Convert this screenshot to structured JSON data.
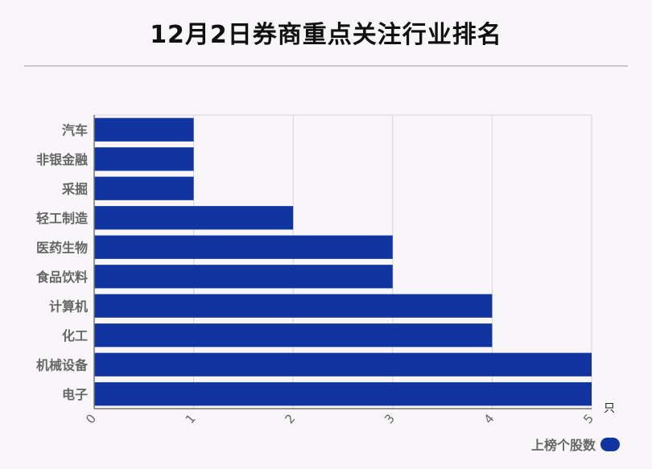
{
  "title": "12月2日券商重点关注行业排名",
  "colors": {
    "bar": "#1035a0",
    "grid": "#d7d4d7",
    "axis": "#777777",
    "label": "#666666"
  },
  "legend": {
    "label": "上榜个股数"
  },
  "chart_data": {
    "type": "bar",
    "orientation": "horizontal",
    "categories": [
      "汽车",
      "非银金融",
      "采掘",
      "轻工制造",
      "医药生物",
      "食品饮料",
      "计算机",
      "化工",
      "机械设备",
      "电子"
    ],
    "series": [
      {
        "name": "上榜个股数",
        "values": [
          1,
          1,
          1,
          2,
          3,
          3,
          4,
          4,
          5,
          5
        ]
      }
    ],
    "xlim": [
      0,
      5
    ],
    "xticks": [
      "0",
      "1",
      "2",
      "3",
      "4",
      "5"
    ],
    "xunit": "只",
    "grid": true,
    "legend_position": "bottom-right"
  }
}
